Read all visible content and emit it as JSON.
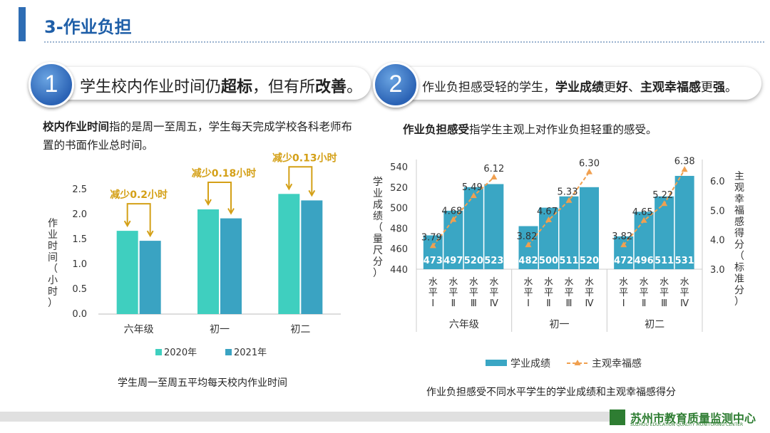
{
  "header": {
    "title": "3-作业负担"
  },
  "banner1": {
    "number": "1",
    "text_a": "学生校内作业时间仍",
    "text_b": "超标",
    "text_c": "，但有所",
    "text_d": "改善",
    "text_e": "。"
  },
  "banner2": {
    "number": "2",
    "text_a": "作业负担感受轻的学生，",
    "text_b": "学业成绩",
    "text_c": "更",
    "text_d": "好",
    "text_e": "、",
    "text_f": "主观幸福感",
    "text_g": "更",
    "text_h": "强",
    "text_i": "。"
  },
  "para1": {
    "bold": "校内作业时间",
    "rest": "指的是周一至周五，学生每天完成学校各科老师布置的书面作业总时间。"
  },
  "para2": {
    "bold": "作业负担感受",
    "rest": "指学生主观上对作业负担轻重的感受。"
  },
  "captions": {
    "left": "学生周一至周五平均每天校内作业时间",
    "right": "作业负担感受不同水平学生的学业成绩和主观幸福感得分"
  },
  "footer": {
    "org": "苏州市教育质量监测中心",
    "org_en": "SUZHOU EDUCATION QUALITY MONITORING CENTER"
  },
  "colors": {
    "c2020": "#3fcfbf",
    "c2021": "#3aa3c2",
    "bar": "#3aa6c4",
    "line": "#f0a050",
    "accent": "#d4a017",
    "blue": "#2e6db4"
  },
  "chart_data": [
    {
      "type": "bar",
      "title": "学生周一至周五平均每天校内作业时间",
      "categories": [
        "六年级",
        "初一",
        "初二"
      ],
      "series": [
        {
          "name": "2020年",
          "values": [
            1.67,
            2.1,
            2.41
          ]
        },
        {
          "name": "2021年",
          "values": [
            1.47,
            1.92,
            2.28
          ]
        }
      ],
      "ylabel": "作业时间（小时）",
      "ylim": [
        0,
        2.5
      ],
      "yticks": [
        "0.0",
        "0.5",
        "1.0",
        "1.5",
        "2.0",
        "2.5"
      ],
      "annotations": [
        "减少0.2小时",
        "减少0.18小时",
        "减少0.13小时"
      ]
    },
    {
      "type": "bar+line",
      "title": "作业负担感受不同水平学生的学业成绩和主观幸福感得分",
      "groups": [
        "六年级",
        "初一",
        "初二"
      ],
      "levels": [
        "水平Ⅰ",
        "水平Ⅱ",
        "水平Ⅲ",
        "水平Ⅳ"
      ],
      "series": [
        {
          "name": "学业成绩",
          "axis": "left",
          "values": [
            [
              473,
              497,
              520,
              523
            ],
            [
              482,
              500,
              511,
              520
            ],
            [
              472,
              496,
              511,
              531
            ]
          ],
          "labels": [
            [
              "473",
              "497",
              "520",
              "523"
            ],
            [
              "482",
              "500",
              "511",
              "520"
            ],
            [
              "472",
              "496",
              "511",
              "531"
            ]
          ]
        },
        {
          "name": "主观幸福感",
          "axis": "right",
          "values": [
            [
              3.79,
              4.68,
              5.49,
              6.12
            ],
            [
              3.82,
              4.67,
              5.33,
              6.3
            ],
            [
              3.82,
              4.65,
              5.22,
              6.38
            ]
          ],
          "labels": [
            [
              "3.79",
              "4.68",
              "5.49",
              "6.12"
            ],
            [
              "3.82",
              "4.67",
              "5.33",
              "6.30"
            ],
            [
              "3.82",
              "4.65",
              "5.22",
              "6.38"
            ]
          ]
        }
      ],
      "ylabel_left": "学业成绩（量尺分）",
      "ylabel_right": "主观幸福感得分（标准分）",
      "ylim_left": [
        440,
        540
      ],
      "yticks_left": [
        "440",
        "460",
        "480",
        "500",
        "520",
        "540"
      ],
      "ylim_right": [
        3.0,
        6.5
      ],
      "yticks_right": [
        "3.0",
        "4.0",
        "5.0",
        "6.0"
      ]
    }
  ]
}
